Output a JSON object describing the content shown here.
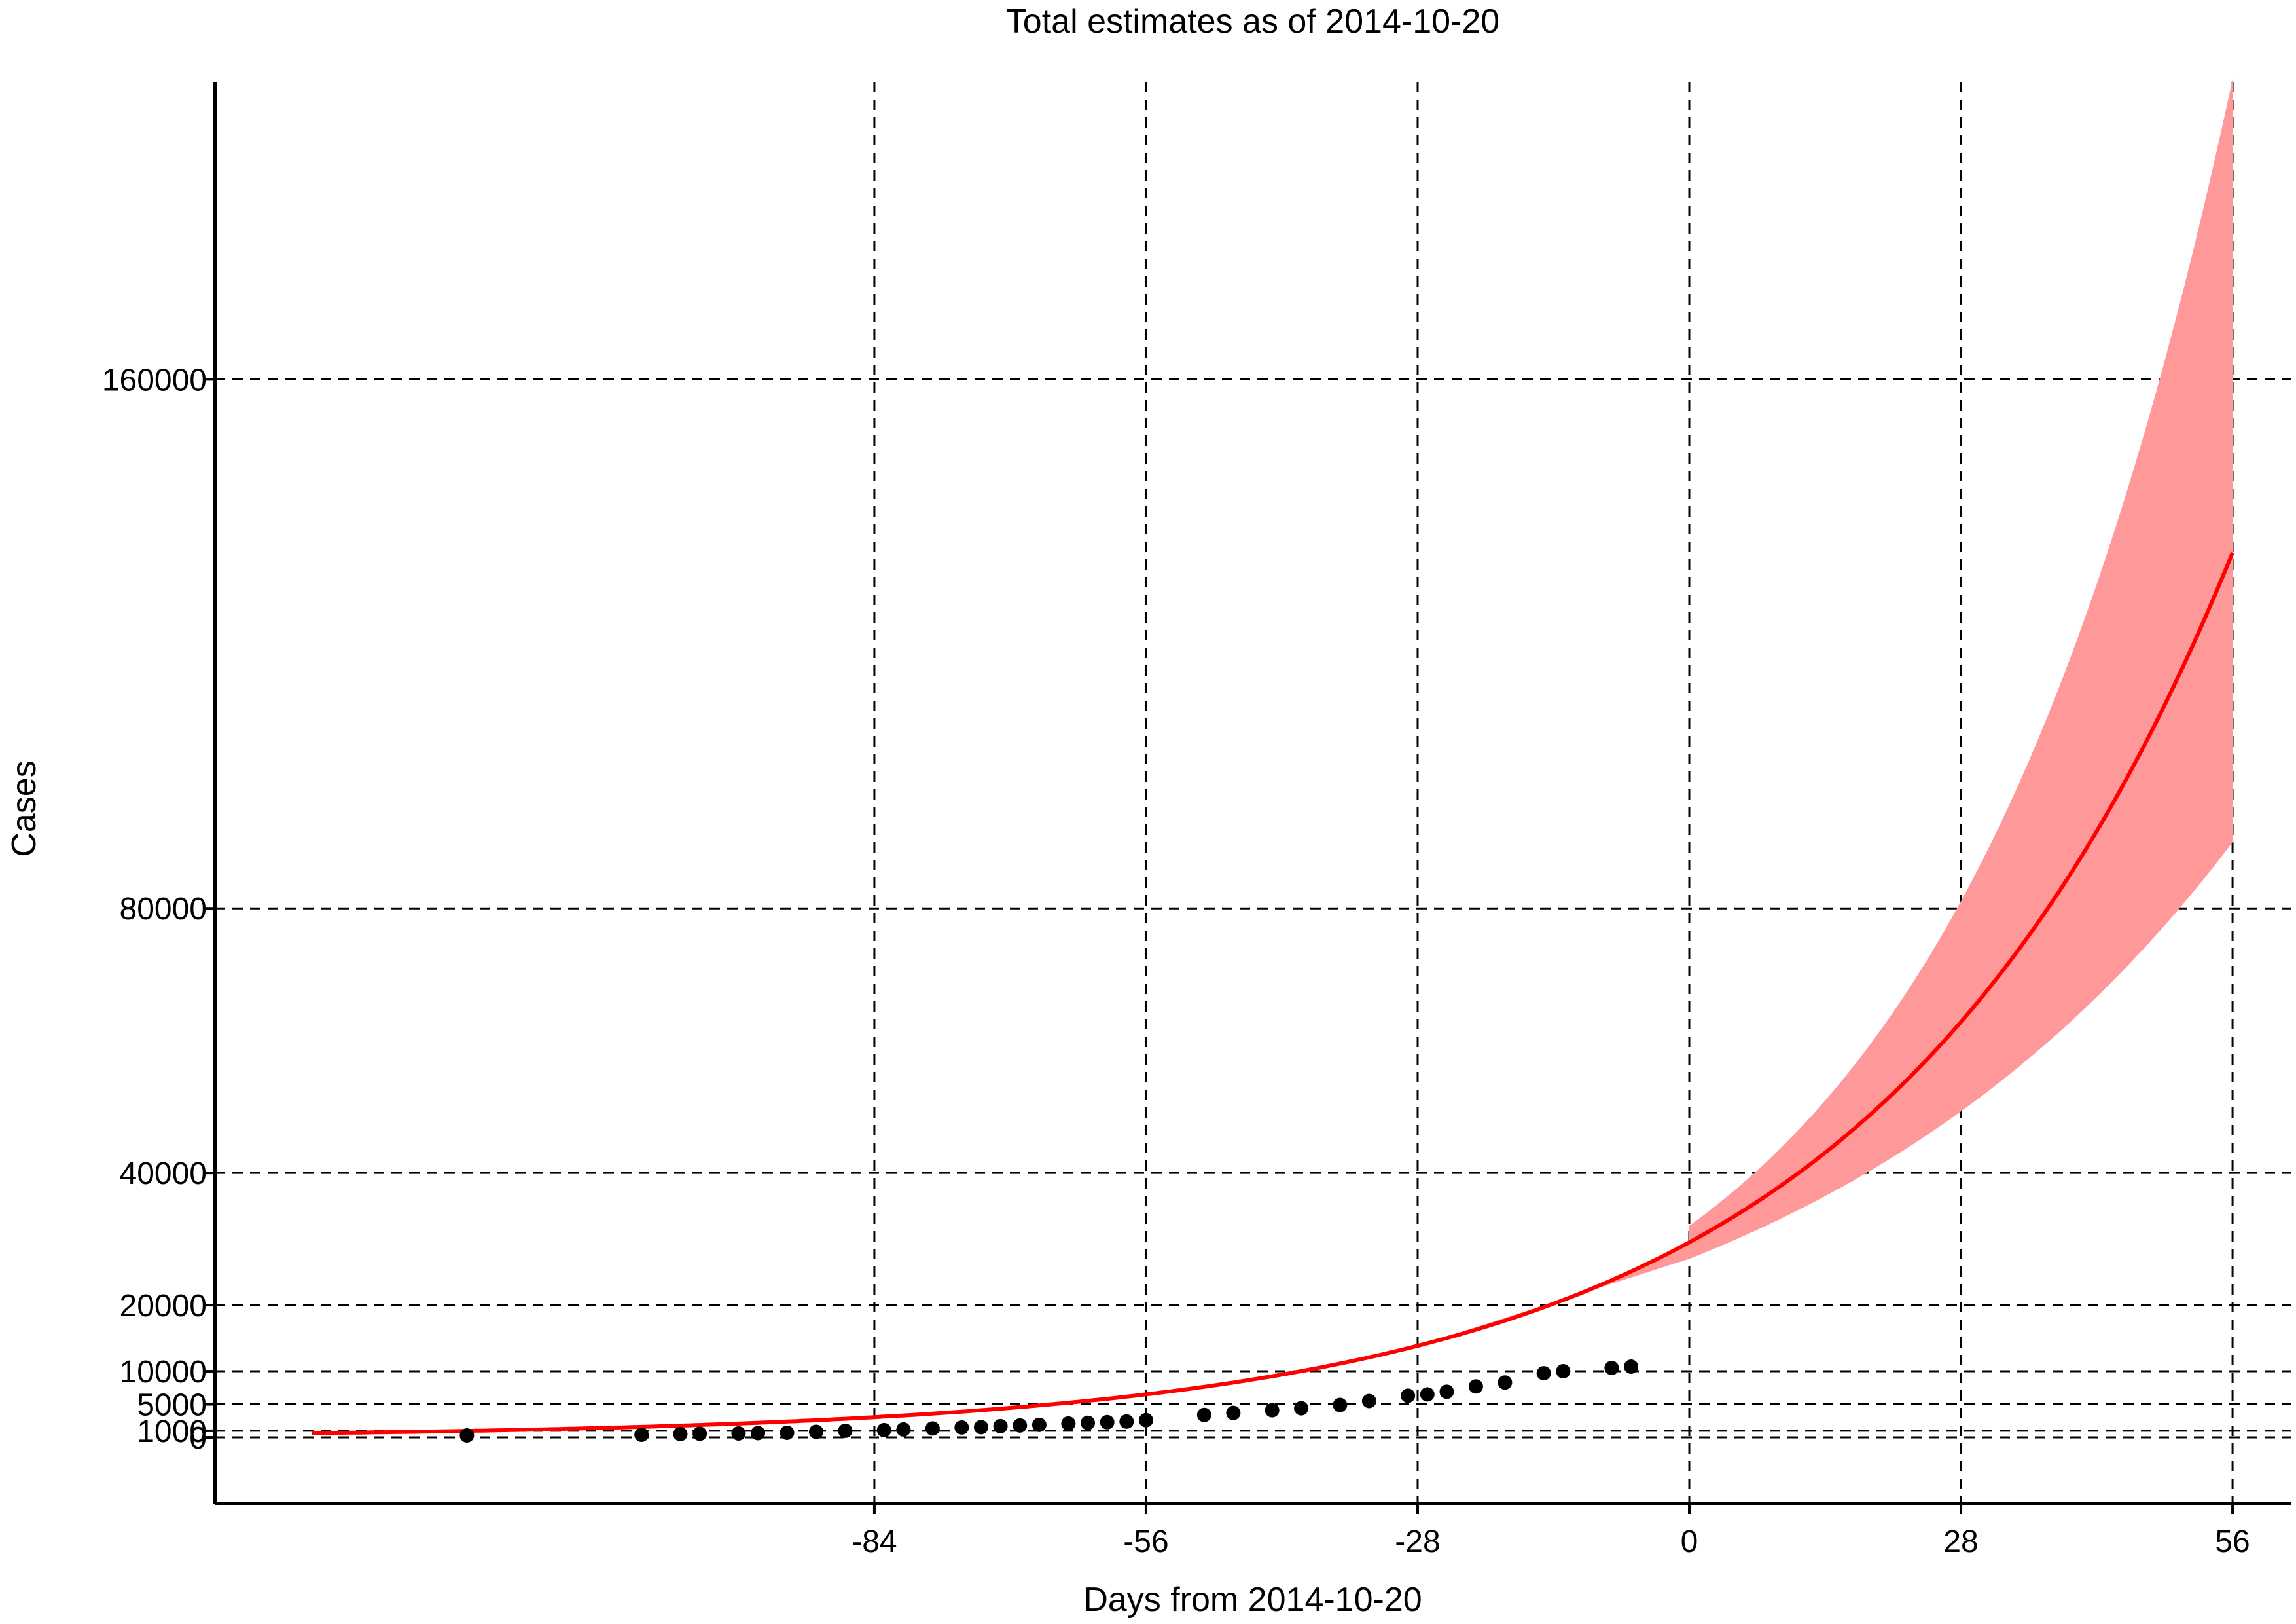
{
  "chart_data": {
    "type": "line",
    "title": "Total estimates as of 2014-10-20",
    "xlabel": "Days from 2014-10-20",
    "ylabel": "Cases",
    "xlim": [
      -152,
      62
    ],
    "ylim": [
      -10000,
      205000
    ],
    "xticks": [
      -84,
      -56,
      -28,
      0,
      28,
      56
    ],
    "yticks": [
      0,
      1000,
      5000,
      10000,
      20000,
      40000,
      80000,
      160000
    ],
    "ytick_labels": [
      "0",
      "1000",
      "5000",
      "10000",
      "20000",
      "40000",
      "80000",
      "160000"
    ],
    "grid": true,
    "colors": {
      "fit": "#ff0000",
      "band": "#ff9999",
      "observed": "#000000"
    },
    "fit_model": {
      "a": 29500,
      "r": 0.027,
      "x_start": -142,
      "x_end": 56
    },
    "band_model": {
      "a_lo": 27000,
      "r_lo": 0.0215,
      "a_hi": 32000,
      "r_hi": 0.0332,
      "x_start": 0,
      "x_end": 56
    },
    "series": [
      {
        "x": [
          -126,
          -108,
          -104,
          -102,
          -98,
          -96,
          -93,
          -90,
          -87,
          -83,
          -81,
          -78,
          -75,
          -73,
          -71,
          -69,
          -67,
          -64,
          -62,
          -60,
          -58,
          -56,
          -50,
          -47,
          -43,
          -40,
          -36,
          -33,
          -29,
          -27,
          -25,
          -22,
          -19,
          -15,
          -13,
          -8,
          -6
        ],
        "y": [
          300,
          400,
          500,
          550,
          600,
          650,
          700,
          850,
          1000,
          1100,
          1200,
          1350,
          1500,
          1550,
          1700,
          1800,
          1900,
          2100,
          2200,
          2300,
          2400,
          2600,
          3400,
          3700,
          4100,
          4400,
          4900,
          5500,
          6300,
          6500,
          6900,
          7700,
          8300,
          9700,
          10000,
          10500,
          10700
        ]
      }
    ]
  }
}
